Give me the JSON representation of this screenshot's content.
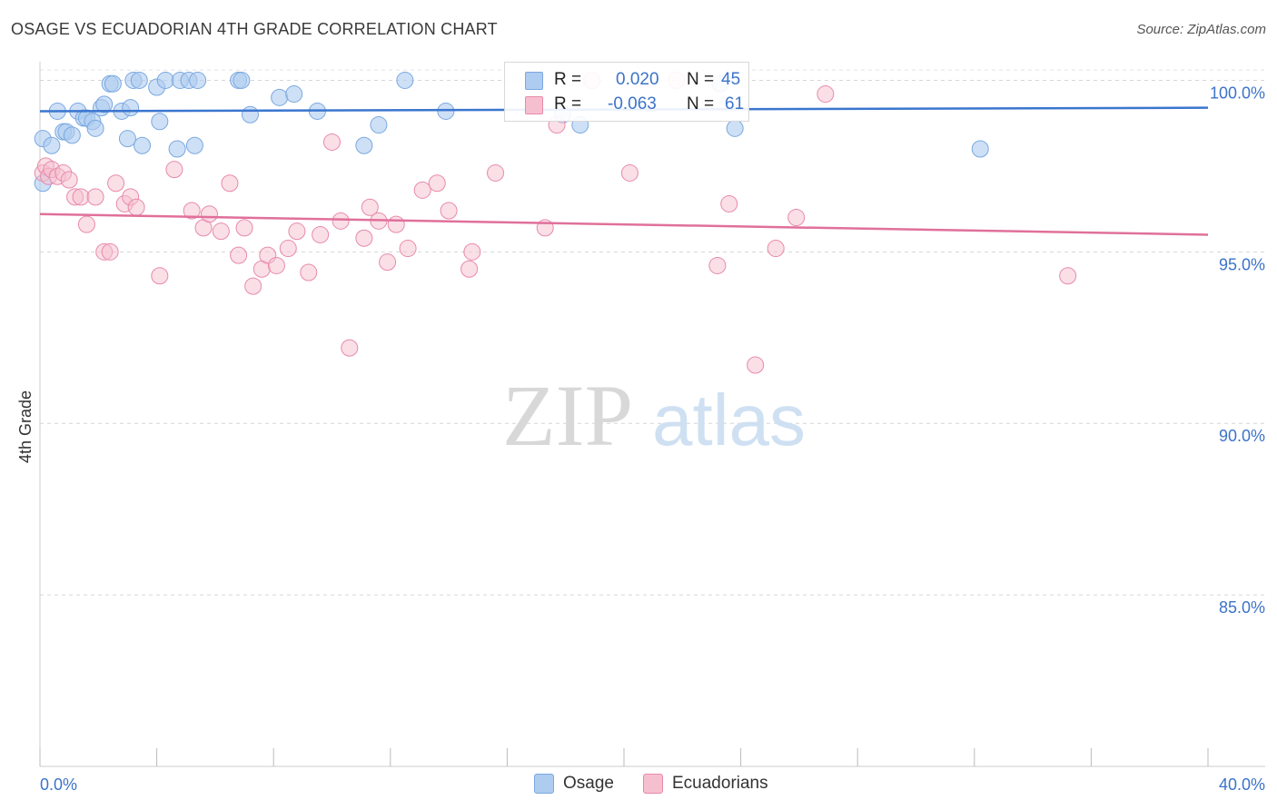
{
  "title": "OSAGE VS ECUADORIAN 4TH GRADE CORRELATION CHART",
  "source": "Source: ZipAtlas.com",
  "watermark": {
    "zip": "ZIP",
    "atlas": "atlas"
  },
  "legend": {
    "r_label": "R = ",
    "n_label": "N = ",
    "rows": [
      {
        "name": "Osage",
        "r": "0.020",
        "n": "45",
        "color": "#7aa8e0",
        "fill": "#aecbf0"
      },
      {
        "name": "Ecuadorians",
        "r": "-0.063",
        "n": "61",
        "color": "#e88aab",
        "fill": "#f6bfd0"
      }
    ]
  },
  "chart_data": {
    "type": "scatter",
    "title": "OSAGE VS ECUADORIAN 4TH GRADE CORRELATION CHART",
    "xlabel": "",
    "ylabel": "4th Grade",
    "xlim": [
      0,
      40
    ],
    "ylim": [
      80.0,
      100.7
    ],
    "x_tick_labels": [
      {
        "value": 0,
        "label": "0.0%"
      },
      {
        "value": 40,
        "label": "40.0%"
      }
    ],
    "y_tick_labels": [
      {
        "value": 100,
        "label": "100.0%"
      },
      {
        "value": 95,
        "label": "95.0%"
      },
      {
        "value": 90,
        "label": "90.0%"
      },
      {
        "value": 85,
        "label": "85.0%"
      }
    ],
    "series": [
      {
        "name": "Osage",
        "color": "#3a76cf",
        "trend": {
          "x": [
            0,
            40
          ],
          "y": [
            99.1,
            99.2
          ]
        },
        "points": [
          [
            0.1,
            97.0
          ],
          [
            0.1,
            98.3
          ],
          [
            0.4,
            98.1
          ],
          [
            0.6,
            99.1
          ],
          [
            0.8,
            98.5
          ],
          [
            0.9,
            98.5
          ],
          [
            1.1,
            98.4
          ],
          [
            1.3,
            99.1
          ],
          [
            1.5,
            98.9
          ],
          [
            1.6,
            98.9
          ],
          [
            1.8,
            98.8
          ],
          [
            1.9,
            98.6
          ],
          [
            2.1,
            99.2
          ],
          [
            2.2,
            99.3
          ],
          [
            2.4,
            99.9
          ],
          [
            2.5,
            99.9
          ],
          [
            2.8,
            99.1
          ],
          [
            3.0,
            98.3
          ],
          [
            3.1,
            99.2
          ],
          [
            3.2,
            100.0
          ],
          [
            3.4,
            100.0
          ],
          [
            3.5,
            98.1
          ],
          [
            4.0,
            99.8
          ],
          [
            4.1,
            98.8
          ],
          [
            4.3,
            100.0
          ],
          [
            4.7,
            98.0
          ],
          [
            4.8,
            100.0
          ],
          [
            5.1,
            100.0
          ],
          [
            5.3,
            98.1
          ],
          [
            5.4,
            100.0
          ],
          [
            6.8,
            100.0
          ],
          [
            6.9,
            100.0
          ],
          [
            7.2,
            99.0
          ],
          [
            8.2,
            99.5
          ],
          [
            8.7,
            99.6
          ],
          [
            9.5,
            99.1
          ],
          [
            11.1,
            98.1
          ],
          [
            11.6,
            98.7
          ],
          [
            12.5,
            100.0
          ],
          [
            13.9,
            99.1
          ],
          [
            17.9,
            99.0
          ],
          [
            18.5,
            98.7
          ],
          [
            23.3,
            99.9
          ],
          [
            23.8,
            98.6
          ],
          [
            32.2,
            98.0
          ]
        ]
      },
      {
        "name": "Ecuadorians",
        "color": "#e0709a",
        "trend": {
          "x": [
            0,
            40
          ],
          "y": [
            96.1,
            95.5
          ]
        },
        "points": [
          [
            0.1,
            97.3
          ],
          [
            0.2,
            97.5
          ],
          [
            0.3,
            97.2
          ],
          [
            0.4,
            97.4
          ],
          [
            0.6,
            97.2
          ],
          [
            0.8,
            97.3
          ],
          [
            1.0,
            97.1
          ],
          [
            1.2,
            96.6
          ],
          [
            1.4,
            96.6
          ],
          [
            1.6,
            95.8
          ],
          [
            1.9,
            96.6
          ],
          [
            2.2,
            95.0
          ],
          [
            2.4,
            95.0
          ],
          [
            2.6,
            97.0
          ],
          [
            2.9,
            96.4
          ],
          [
            3.1,
            96.6
          ],
          [
            3.3,
            96.3
          ],
          [
            4.1,
            94.3
          ],
          [
            4.6,
            97.4
          ],
          [
            5.2,
            96.2
          ],
          [
            5.6,
            95.7
          ],
          [
            5.8,
            96.1
          ],
          [
            6.2,
            95.6
          ],
          [
            6.5,
            97.0
          ],
          [
            6.8,
            94.9
          ],
          [
            7.0,
            95.7
          ],
          [
            7.3,
            94.0
          ],
          [
            7.6,
            94.5
          ],
          [
            7.8,
            94.9
          ],
          [
            8.1,
            94.6
          ],
          [
            8.5,
            95.1
          ],
          [
            8.8,
            95.6
          ],
          [
            9.2,
            94.4
          ],
          [
            9.6,
            95.5
          ],
          [
            10.0,
            98.2
          ],
          [
            10.3,
            95.9
          ],
          [
            10.6,
            92.2
          ],
          [
            11.1,
            95.4
          ],
          [
            11.3,
            96.3
          ],
          [
            11.6,
            95.9
          ],
          [
            11.9,
            94.7
          ],
          [
            12.2,
            95.8
          ],
          [
            12.6,
            95.1
          ],
          [
            13.1,
            96.8
          ],
          [
            13.6,
            97.0
          ],
          [
            14.0,
            96.2
          ],
          [
            14.7,
            94.5
          ],
          [
            14.8,
            95.0
          ],
          [
            15.6,
            97.3
          ],
          [
            17.3,
            95.7
          ],
          [
            17.7,
            98.7
          ],
          [
            18.9,
            100.0
          ],
          [
            20.2,
            97.3
          ],
          [
            21.8,
            100.0
          ],
          [
            23.2,
            94.6
          ],
          [
            23.6,
            96.4
          ],
          [
            24.5,
            91.7
          ],
          [
            25.2,
            95.1
          ],
          [
            25.9,
            96.0
          ],
          [
            26.9,
            99.6
          ],
          [
            35.2,
            94.3
          ]
        ]
      }
    ]
  }
}
